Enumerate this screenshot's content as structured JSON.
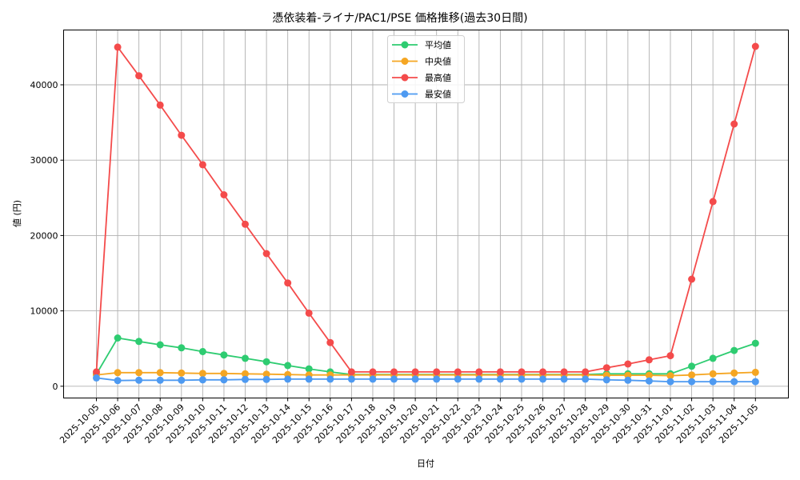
{
  "chart_data": {
    "type": "line",
    "title": "憑依装着-ライナ/PAC1/PSE 価格推移(過去30日間)",
    "xlabel": "日付",
    "ylabel": "値 (円)",
    "ylim": [
      -1500,
      47300
    ],
    "yticks": [
      0,
      10000,
      20000,
      30000,
      40000
    ],
    "grid": true,
    "legend_position": "upper center",
    "x": [
      "2025-10-05",
      "2025-10-06",
      "2025-10-07",
      "2025-10-08",
      "2025-10-09",
      "2025-10-10",
      "2025-10-11",
      "2025-10-12",
      "2025-10-13",
      "2025-10-14",
      "2025-10-15",
      "2025-10-16",
      "2025-10-17",
      "2025-10-18",
      "2025-10-19",
      "2025-10-20",
      "2025-10-21",
      "2025-10-22",
      "2025-10-23",
      "2025-10-24",
      "2025-10-25",
      "2025-10-26",
      "2025-10-27",
      "2025-10-28",
      "2025-10-29",
      "2025-10-30",
      "2025-10-31",
      "2025-11-01",
      "2025-11-02",
      "2025-11-03",
      "2025-11-04",
      "2025-11-05"
    ],
    "series": [
      {
        "name": "平均値",
        "color": "#2ecc71",
        "values": [
          1600,
          6400,
          5950,
          5500,
          5100,
          4600,
          4150,
          3700,
          3250,
          2750,
          2300,
          1900,
          1550,
          1550,
          1550,
          1550,
          1550,
          1550,
          1550,
          1550,
          1550,
          1550,
          1550,
          1550,
          1650,
          1650,
          1650,
          1650,
          2650,
          3700,
          4750,
          5700
        ]
      },
      {
        "name": "中央値",
        "color": "#f5a623",
        "values": [
          1500,
          1800,
          1800,
          1800,
          1750,
          1700,
          1700,
          1650,
          1600,
          1550,
          1500,
          1500,
          1500,
          1500,
          1500,
          1500,
          1500,
          1500,
          1500,
          1500,
          1500,
          1500,
          1500,
          1500,
          1450,
          1450,
          1450,
          1400,
          1500,
          1650,
          1750,
          1850
        ]
      },
      {
        "name": "最高値",
        "color": "#f44b4b",
        "values": [
          1900,
          45000,
          41200,
          37300,
          33300,
          29400,
          25400,
          21500,
          17600,
          13700,
          9700,
          5800,
          1900,
          1900,
          1900,
          1900,
          1900,
          1900,
          1900,
          1900,
          1900,
          1900,
          1900,
          1900,
          2450,
          2950,
          3500,
          4050,
          14200,
          24500,
          34800,
          45100
        ]
      },
      {
        "name": "最安値",
        "color": "#4e9af1",
        "values": [
          1100,
          750,
          800,
          800,
          800,
          850,
          850,
          900,
          900,
          950,
          950,
          950,
          950,
          950,
          950,
          950,
          950,
          950,
          950,
          950,
          950,
          950,
          950,
          950,
          850,
          800,
          700,
          600,
          600,
          600,
          600,
          600
        ]
      }
    ]
  },
  "legend": {
    "items": [
      "平均値",
      "中央値",
      "最高値",
      "最安値"
    ]
  }
}
